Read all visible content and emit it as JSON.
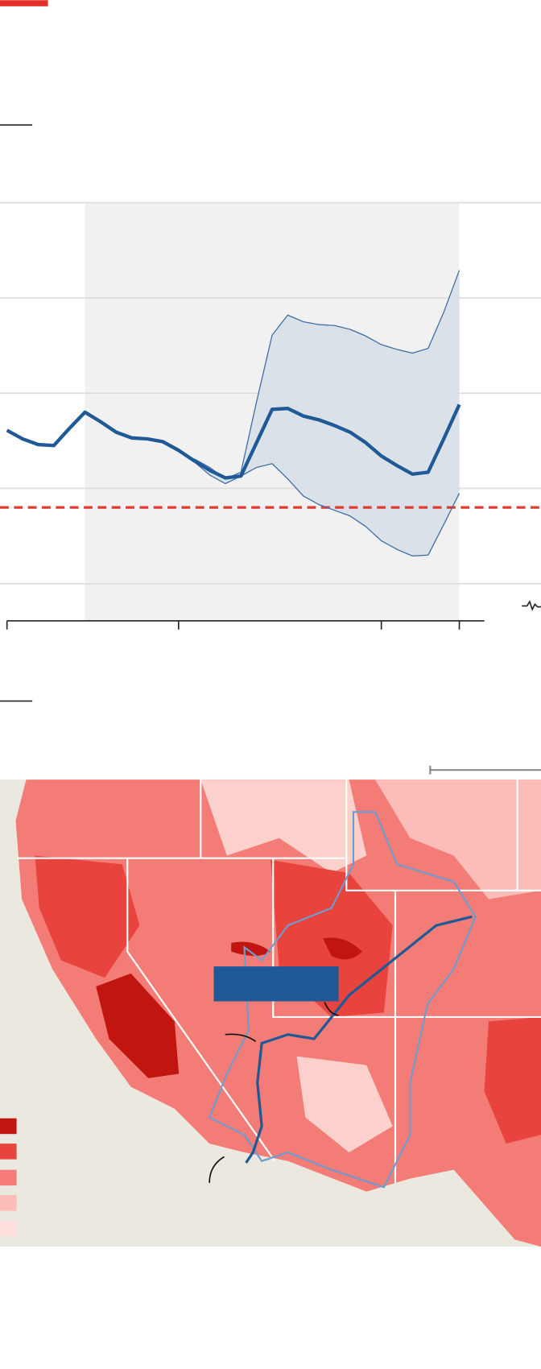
{
  "chart_data": {
    "type": "line",
    "x": [
      0,
      1,
      2,
      3,
      4,
      5,
      6,
      7,
      8,
      9,
      10,
      11,
      12,
      13,
      14,
      15,
      16,
      17,
      18,
      19,
      20,
      21,
      22,
      23,
      24,
      25,
      26,
      27,
      28,
      29
    ],
    "xlim": [
      0,
      30.6
    ],
    "xticks": [
      0,
      11,
      24,
      29
    ],
    "ylim": [
      -0.39,
      4
    ],
    "yticks": [
      0,
      1,
      2,
      3,
      4
    ],
    "grid": true,
    "highlight": [
      5,
      29
    ],
    "reference": 0.8,
    "reference_color": "#e03a33",
    "band_color": "#d6dee8",
    "series": [
      {
        "color": "#1f5a96",
        "values": [
          1.61,
          1.52,
          1.46,
          1.45,
          1.63,
          1.8,
          1.7,
          1.59,
          1.53,
          1.52,
          1.49,
          1.4,
          1.29,
          1.19,
          1.11,
          1.13,
          1.48,
          1.83,
          1.84,
          1.76,
          1.72,
          1.66,
          1.59,
          1.48,
          1.34,
          1.24,
          1.15,
          1.17,
          1.52,
          1.88
        ]
      },
      {
        "color": "#3f6fa3",
        "values": [
          null,
          null,
          null,
          null,
          null,
          null,
          null,
          null,
          null,
          null,
          null,
          null,
          1.31,
          1.22,
          1.1,
          1.17,
          1.91,
          2.61,
          2.82,
          2.75,
          2.72,
          2.71,
          2.67,
          2.6,
          2.51,
          2.46,
          2.42,
          2.47,
          2.85,
          3.29
        ]
      },
      {
        "color": "#3f6fa3",
        "values": [
          null,
          null,
          null,
          null,
          null,
          null,
          null,
          null,
          null,
          null,
          null,
          null,
          1.28,
          1.14,
          1.05,
          1.13,
          1.22,
          1.26,
          1.1,
          0.92,
          0.83,
          0.77,
          0.71,
          0.6,
          0.45,
          0.36,
          0.29,
          0.3,
          0.62,
          0.95
        ]
      }
    ]
  }
}
